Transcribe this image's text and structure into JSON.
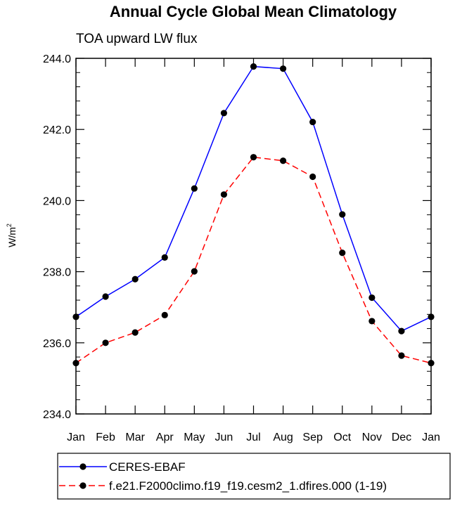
{
  "chart_data": {
    "type": "line",
    "title": "Annual Cycle Global Mean Climatology",
    "subtitle": "TOA upward LW flux",
    "ylabel": "W/m",
    "ylabel_superscript": "2",
    "ylim": [
      234.0,
      244.0
    ],
    "yticks": [
      "234.0",
      "236.0",
      "238.0",
      "240.0",
      "242.0",
      "244.0"
    ],
    "categories": [
      "Jan",
      "Feb",
      "Mar",
      "Apr",
      "May",
      "Jun",
      "Jul",
      "Aug",
      "Sep",
      "Oct",
      "Nov",
      "Dec",
      "Jan"
    ],
    "grid": false,
    "legend_position": "bottom",
    "series": [
      {
        "name": "CERES-EBAF",
        "color": "#0000ff",
        "dash": "solid",
        "values": [
          236.73,
          237.3,
          237.79,
          238.4,
          240.34,
          242.46,
          243.77,
          243.71,
          242.21,
          239.61,
          237.27,
          236.33,
          236.73
        ]
      },
      {
        "name": "f.e21.F2000climo.f19_f19.cesm2_1.dfires.000 (1-19)",
        "color": "#ff0000",
        "dash": "dashed",
        "values": [
          235.43,
          236.0,
          236.29,
          236.78,
          238.01,
          240.17,
          241.22,
          241.12,
          240.67,
          238.53,
          236.61,
          235.64,
          235.43
        ]
      }
    ]
  }
}
